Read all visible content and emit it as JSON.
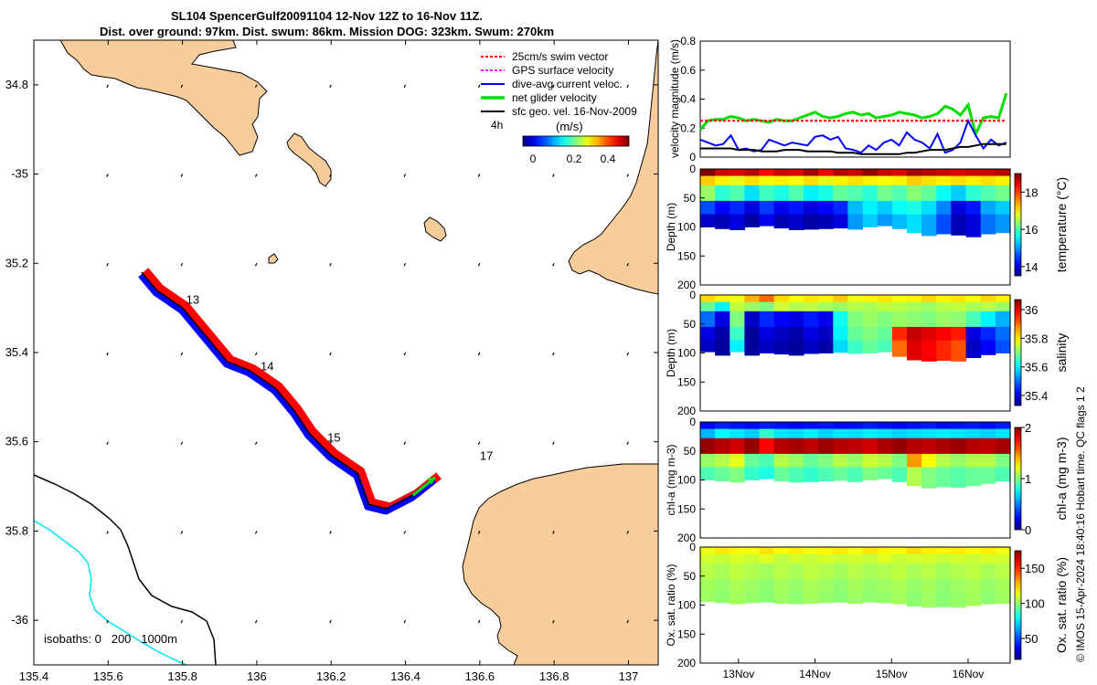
{
  "title": {
    "line1": "SL104 SpencerGulf20091104 12-Nov 12Z to 16-Nov 11Z.",
    "line2": "Dist. over ground: 97km. Dist. swum: 86km. Mission DOG: 323km. Swum: 270km"
  },
  "footer": "© IMOS 15-Apr-2024 18:40:16 Hobart time. QC flags 1 2",
  "colors": {
    "land": "#F9CC9C",
    "swim_vector": "#FF0000",
    "gps_velocity": "#FF00FF",
    "current": "#0000FF",
    "net_velocity": "#00DD00",
    "sfc_geo": "#000000",
    "isobath_200": "#00E5EE"
  },
  "chart_data": [
    {
      "type": "map",
      "xlim": [
        135.4,
        137.08
      ],
      "ylim": [
        -36.1,
        -34.7
      ],
      "x_ticks": [
        135.4,
        135.6,
        135.8,
        136,
        136.2,
        136.4,
        136.6,
        136.8,
        137
      ],
      "x_tick_labels": [
        "135.4",
        "135.6",
        "135.8",
        "136",
        "136.2",
        "136.4",
        "136.6",
        "136.8",
        "137"
      ],
      "y_ticks": [
        -34.8,
        -35,
        -35.2,
        -35.4,
        -35.6,
        -35.8,
        -36
      ],
      "y_tick_labels": [
        "34.8",
        "-35",
        "35.2",
        "35.4",
        "35.6",
        "35.8",
        "-36"
      ],
      "legend": {
        "placement": "top-right",
        "entries": [
          "25cm/s swim vector",
          "GPS surface velocity",
          "dive-avg current veloc.",
          "net glider velocity",
          "sfc geo. vel. 16-Nov-2009"
        ],
        "time_label": "4h"
      },
      "colorbar": {
        "label": "(m/s)",
        "ticks": [
          "0",
          "0.2",
          "0.4"
        ],
        "range": [
          0,
          0.5
        ]
      },
      "day_labels": [
        {
          "text": "13",
          "lon": 135.81,
          "lat": -35.29
        },
        {
          "text": "14",
          "lon": 136.01,
          "lat": -35.44
        },
        {
          "text": "15",
          "lon": 136.19,
          "lat": -35.6
        },
        {
          "text": "17",
          "lon": 136.6,
          "lat": -35.64
        }
      ],
      "track": [
        [
          135.69,
          -35.22
        ],
        [
          135.73,
          -35.26
        ],
        [
          135.8,
          -35.3
        ],
        [
          135.86,
          -35.36
        ],
        [
          135.92,
          -35.42
        ],
        [
          135.98,
          -35.44
        ],
        [
          136.05,
          -35.48
        ],
        [
          136.1,
          -35.53
        ],
        [
          136.14,
          -35.58
        ],
        [
          136.2,
          -35.63
        ],
        [
          136.27,
          -35.67
        ],
        [
          136.3,
          -35.74
        ],
        [
          136.35,
          -35.75
        ],
        [
          136.42,
          -35.72
        ],
        [
          136.48,
          -35.68
        ]
      ],
      "isobaths_label": "isobaths: 0   200   1000m"
    },
    {
      "type": "line",
      "ylabel": "velocity magnitude (m/s)",
      "ylim": [
        0,
        0.8
      ],
      "y_ticks": [
        "0",
        "0.2",
        "0.4",
        "0.6",
        "0.8"
      ],
      "x": [
        12.5,
        12.6,
        12.7,
        12.8,
        12.9,
        13.0,
        13.1,
        13.2,
        13.3,
        13.4,
        13.5,
        13.6,
        13.7,
        13.8,
        13.9,
        14.0,
        14.1,
        14.2,
        14.3,
        14.4,
        14.5,
        14.6,
        14.7,
        14.8,
        14.9,
        15.0,
        15.1,
        15.2,
        15.3,
        15.4,
        15.5,
        15.6,
        15.7,
        15.8,
        15.9,
        16.0,
        16.1,
        16.2,
        16.3,
        16.4,
        16.5
      ],
      "series": [
        {
          "name": "net glider velocity",
          "color": "#00DD00",
          "values": [
            0.19,
            0.25,
            0.26,
            0.26,
            0.28,
            0.27,
            0.25,
            0.26,
            0.25,
            0.24,
            0.26,
            0.25,
            0.25,
            0.27,
            0.29,
            0.31,
            0.28,
            0.27,
            0.28,
            0.3,
            0.31,
            0.29,
            0.3,
            0.27,
            0.28,
            0.29,
            0.31,
            0.3,
            0.29,
            0.27,
            0.28,
            0.3,
            0.35,
            0.33,
            0.29,
            0.36,
            0.16,
            0.27,
            0.28,
            0.27,
            0.44
          ]
        },
        {
          "name": "25cm/s swim vector",
          "color": "#FF0000",
          "values": [
            0.25,
            0.25,
            0.25,
            0.25,
            0.25,
            0.25,
            0.25,
            0.25,
            0.25,
            0.25,
            0.25,
            0.25,
            0.25,
            0.25,
            0.25,
            0.25,
            0.25,
            0.25,
            0.25,
            0.25,
            0.25,
            0.25,
            0.25,
            0.25,
            0.25,
            0.25,
            0.25,
            0.25,
            0.25,
            0.25,
            0.25,
            0.25,
            0.25,
            0.25,
            0.25,
            0.25,
            0.25,
            0.25,
            0.25,
            0.25,
            0.25
          ]
        },
        {
          "name": "dive-avg current veloc.",
          "color": "#0000FF",
          "values": [
            0.12,
            0.1,
            0.08,
            0.09,
            0.15,
            0.05,
            0.06,
            0.04,
            0.05,
            0.12,
            0.1,
            0.08,
            0.1,
            0.09,
            0.08,
            0.14,
            0.15,
            0.12,
            0.14,
            0.06,
            0.05,
            0.03,
            0.08,
            0.05,
            0.1,
            0.12,
            0.08,
            0.17,
            0.12,
            0.1,
            0.06,
            0.16,
            0.03,
            0.05,
            0.1,
            0.25,
            0.15,
            0.06,
            0.12,
            0.08,
            0.1
          ]
        },
        {
          "name": "sfc geo. vel.",
          "color": "#000000",
          "values": [
            0.06,
            0.06,
            0.06,
            0.06,
            0.06,
            0.05,
            0.05,
            0.05,
            0.04,
            0.04,
            0.04,
            0.05,
            0.05,
            0.05,
            0.04,
            0.04,
            0.04,
            0.04,
            0.03,
            0.03,
            0.03,
            0.02,
            0.02,
            0.02,
            0.02,
            0.02,
            0.02,
            0.03,
            0.03,
            0.04,
            0.05,
            0.05,
            0.05,
            0.06,
            0.07,
            0.07,
            0.08,
            0.09,
            0.09,
            0.09,
            0.09
          ]
        }
      ],
      "xlim": [
        12.5,
        16.55
      ]
    },
    {
      "type": "heatmap",
      "ylabel": "Depth (m)",
      "ylim": [
        200,
        0
      ],
      "y_ticks": [
        "0",
        "50",
        "100",
        "150",
        "200"
      ],
      "colorbar": {
        "label": "temperature (°C)",
        "ticks": [
          "14",
          "16",
          "18"
        ],
        "range": [
          13.5,
          19
        ]
      },
      "profile_bottom_m": [
        100,
        103,
        105,
        100,
        98,
        102,
        105,
        104,
        103,
        102,
        104,
        100,
        98,
        103,
        110,
        115,
        112,
        114,
        117,
        112,
        110
      ],
      "values": [
        [
          19,
          18.6,
          18.5,
          18.7,
          18.3,
          18.6,
          18.5,
          18.8,
          18.4,
          18.7,
          18.6,
          18.9,
          18.6,
          18.5,
          18.8,
          18.7,
          18.6,
          18.5,
          18.6,
          18.6,
          18.7
        ],
        [
          17.2,
          17.0,
          16.8,
          17.1,
          16.9,
          17.0,
          16.9,
          17.1,
          16.8,
          17.0,
          17.1,
          17.0,
          16.9,
          17.0,
          17.2,
          17.1,
          17.0,
          17.1,
          17.0,
          17.1,
          17.0
        ],
        [
          16.4,
          15.8,
          16.0,
          15.4,
          15.9,
          15.7,
          16.0,
          15.5,
          15.7,
          16.1,
          16.0,
          15.8,
          16.2,
          16.0,
          16.3,
          16.1,
          15.6,
          15.3,
          15.8,
          16.0,
          16.2
        ],
        [
          14.6,
          14.2,
          14.4,
          14.0,
          14.5,
          14.1,
          14.3,
          14.0,
          14.2,
          14.4,
          15.2,
          15.5,
          15.3,
          15.6,
          15.7,
          15.4,
          14.9,
          14.0,
          14.3,
          15.1,
          15.3
        ],
        [
          13.9,
          13.8,
          14.0,
          13.7,
          14.1,
          13.8,
          13.9,
          13.7,
          13.8,
          14.0,
          15.0,
          15.3,
          15.0,
          15.2,
          15.4,
          15.1,
          14.6,
          13.8,
          14.0,
          14.8,
          15.0
        ]
      ]
    },
    {
      "type": "heatmap",
      "ylabel": "Depth (m)",
      "ylim": [
        200,
        0
      ],
      "y_ticks": [
        "0",
        "50",
        "100",
        "150",
        "200"
      ],
      "colorbar": {
        "label": "salinity",
        "ticks": [
          "35.4",
          "35.6",
          "35.8",
          "36"
        ],
        "range": [
          35.33,
          36.07
        ]
      },
      "profile_bottom_m": [
        98,
        104,
        98,
        104,
        100,
        102,
        104,
        101,
        100,
        99,
        101,
        100,
        98,
        106,
        112,
        114,
        113,
        114,
        108,
        103,
        100
      ],
      "values": [
        [
          35.82,
          35.8,
          35.78,
          35.85,
          35.9,
          35.82,
          35.79,
          35.81,
          35.8,
          35.83,
          35.78,
          35.8,
          35.81,
          35.79,
          35.8,
          35.82,
          35.8,
          35.81,
          35.79,
          35.82,
          35.8
        ],
        [
          35.68,
          35.6,
          35.75,
          35.72,
          35.7,
          35.76,
          35.74,
          35.75,
          35.73,
          35.72,
          35.74,
          35.73,
          35.75,
          35.74,
          35.73,
          35.72,
          35.74,
          35.75,
          35.73,
          35.74,
          35.72
        ],
        [
          35.5,
          35.4,
          35.7,
          35.38,
          35.45,
          35.42,
          35.4,
          35.44,
          35.41,
          35.62,
          35.7,
          35.72,
          35.7,
          35.72,
          35.71,
          35.7,
          35.72,
          35.71,
          35.66,
          35.6,
          35.55
        ],
        [
          35.4,
          35.36,
          35.65,
          35.35,
          35.4,
          35.38,
          35.36,
          35.4,
          35.38,
          35.6,
          35.68,
          35.7,
          35.68,
          35.95,
          36.02,
          36.0,
          35.98,
          35.96,
          35.4,
          35.45,
          35.5
        ],
        [
          35.38,
          35.35,
          35.6,
          35.35,
          35.38,
          35.36,
          35.35,
          35.38,
          35.36,
          35.58,
          35.65,
          35.68,
          35.66,
          35.9,
          36.0,
          35.98,
          35.95,
          35.92,
          35.38,
          35.42,
          35.48
        ]
      ]
    },
    {
      "type": "heatmap",
      "ylabel": "chl-a (mg m-3)",
      "ylim": [
        200,
        0
      ],
      "y_ticks": [
        "0",
        "50",
        "100",
        "150",
        "200"
      ],
      "colorbar": {
        "label": "chl-a (mg m-3)",
        "ticks": [
          "0",
          "1",
          "2"
        ],
        "range": [
          0,
          2
        ]
      },
      "profile_bottom_m": [
        100,
        102,
        104,
        100,
        98,
        102,
        104,
        103,
        102,
        101,
        103,
        100,
        98,
        103,
        110,
        114,
        112,
        113,
        110,
        106,
        102
      ],
      "values": [
        [
          0.25,
          0.3,
          0.28,
          0.26,
          0.3,
          0.28,
          0.25,
          0.27,
          0.29,
          0.26,
          0.28,
          0.3,
          0.27,
          0.25,
          0.28,
          0.3,
          0.26,
          0.28,
          0.29,
          0.27,
          0.3
        ],
        [
          0.6,
          0.75,
          0.7,
          0.65,
          0.85,
          0.7,
          0.68,
          0.72,
          0.66,
          0.7,
          0.68,
          0.72,
          0.7,
          0.66,
          0.68,
          0.7,
          0.72,
          0.7,
          0.68,
          0.66,
          0.7
        ],
        [
          1.95,
          1.9,
          1.85,
          1.95,
          1.75,
          1.9,
          1.92,
          1.88,
          1.94,
          1.9,
          1.88,
          1.85,
          1.92,
          1.95,
          1.9,
          1.88,
          1.92,
          1.95,
          1.9,
          1.88,
          1.92
        ],
        [
          1.05,
          1.1,
          1.2,
          0.95,
          0.9,
          1.1,
          1.05,
          0.95,
          1.0,
          1.1,
          1.05,
          1.15,
          1.1,
          1.0,
          1.45,
          1.25,
          1.1,
          1.05,
          1.1,
          1.1,
          1.0
        ],
        [
          0.9,
          0.95,
          1.0,
          0.85,
          0.8,
          0.95,
          0.9,
          0.85,
          0.9,
          0.95,
          0.9,
          1.0,
          0.95,
          0.9,
          1.1,
          1.0,
          0.95,
          0.92,
          0.95,
          0.95,
          0.9
        ]
      ]
    },
    {
      "type": "heatmap",
      "ylabel": "Ox. sat. ratio (%)",
      "ylim": [
        200,
        0
      ],
      "y_ticks": [
        "0",
        "50",
        "100",
        "150",
        "200"
      ],
      "x_ticks": [
        "13Nov",
        "14Nov",
        "15Nov",
        "16Nov"
      ],
      "colorbar": {
        "label": "Ox. sat. ratio (%)",
        "ticks": [
          "50",
          "100",
          "150"
        ],
        "range": [
          20,
          175
        ]
      },
      "profile_bottom_m": [
        94,
        96,
        98,
        96,
        95,
        97,
        98,
        97,
        96,
        95,
        97,
        95,
        96,
        98,
        102,
        104,
        103,
        104,
        101,
        98,
        97
      ],
      "values": [
        [
          115,
          120,
          118,
          116,
          121,
          117,
          119,
          115,
          118,
          120,
          116,
          121,
          118,
          117,
          122,
          119,
          118,
          120,
          117,
          119,
          116
        ],
        [
          110,
          108,
          111,
          109,
          112,
          107,
          110,
          108,
          111,
          109,
          110,
          108,
          112,
          109,
          110,
          111,
          108,
          110,
          109,
          111,
          110
        ],
        [
          106,
          104,
          107,
          105,
          103,
          106,
          104,
          107,
          105,
          103,
          106,
          104,
          105,
          107,
          104,
          106,
          103,
          105,
          107,
          104,
          106
        ],
        [
          103,
          101,
          104,
          102,
          100,
          103,
          101,
          104,
          102,
          100,
          103,
          101,
          102,
          104,
          101,
          103,
          100,
          102,
          104,
          101,
          103
        ],
        [
          102,
          100,
          103,
          101,
          99,
          102,
          100,
          103,
          101,
          99,
          102,
          100,
          101,
          103,
          100,
          102,
          99,
          101,
          103,
          100,
          102
        ]
      ]
    }
  ]
}
